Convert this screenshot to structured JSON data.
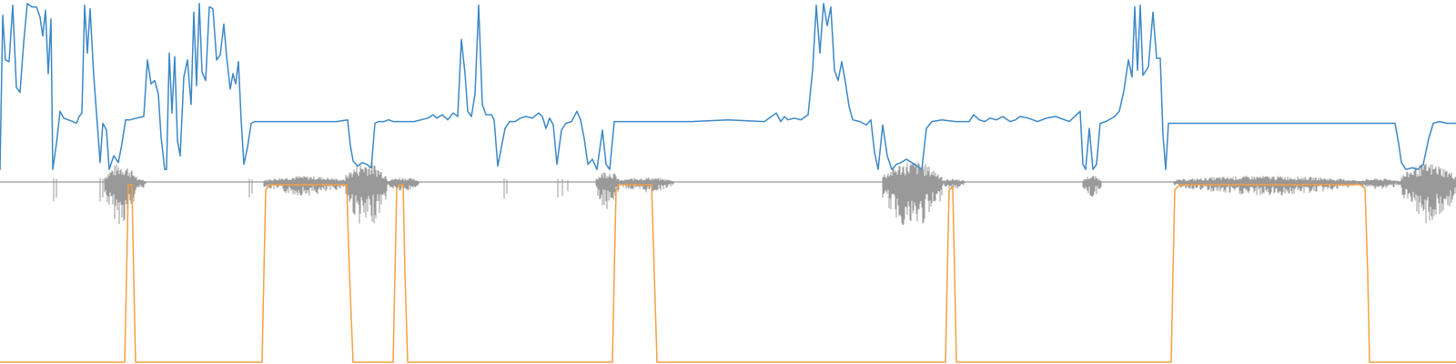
{
  "colors": {
    "background": "#ffffff",
    "waveform": "#999999",
    "pitch": "#3c88c6",
    "voicing": "#f4a043"
  },
  "chart_data": {
    "type": "line",
    "title": "",
    "xlabel": "",
    "ylabel": "",
    "xlim": [
      0,
      1600
    ],
    "grid": false,
    "legend": "none",
    "series": [
      {
        "color": "#3c88c6",
        "ylim": [
          0,
          1
        ],
        "points": [
          [
            0,
            0.02
          ],
          [
            3,
            0.92
          ],
          [
            6,
            0.66
          ],
          [
            10,
            0.65
          ],
          [
            14,
            0.98
          ],
          [
            18,
            0.5
          ],
          [
            22,
            0.47
          ],
          [
            26,
            0.76
          ],
          [
            30,
            0.99
          ],
          [
            35,
            0.97
          ],
          [
            40,
            0.97
          ],
          [
            44,
            0.91
          ],
          [
            47,
            0.8
          ],
          [
            50,
            0.95
          ],
          [
            53,
            0.58
          ],
          [
            56,
            0.9
          ],
          [
            58,
            0.02
          ],
          [
            62,
            0.17
          ],
          [
            66,
            0.36
          ],
          [
            70,
            0.32
          ],
          [
            75,
            0.31
          ],
          [
            80,
            0.3
          ],
          [
            84,
            0.29
          ],
          [
            87,
            0.33
          ],
          [
            90,
            0.35
          ],
          [
            93,
            0.98
          ],
          [
            96,
            0.7
          ],
          [
            99,
            0.96
          ],
          [
            103,
            0.57
          ],
          [
            107,
            0.28
          ],
          [
            110,
            0.06
          ],
          [
            113,
            0.29
          ],
          [
            117,
            0.25
          ],
          [
            120,
            0.02
          ],
          [
            125,
            0.1
          ],
          [
            130,
            0.06
          ],
          [
            134,
            0.17
          ],
          [
            138,
            0.31
          ],
          [
            143,
            0.31
          ],
          [
            150,
            0.32
          ],
          [
            158,
            0.33
          ],
          [
            162,
            0.66
          ],
          [
            166,
            0.52
          ],
          [
            170,
            0.54
          ],
          [
            174,
            0.46
          ],
          [
            177,
            0.21
          ],
          [
            181,
            0.02
          ],
          [
            183,
            0.02
          ],
          [
            186,
            0.7
          ],
          [
            189,
            0.35
          ],
          [
            192,
            0.68
          ],
          [
            195,
            0.19
          ],
          [
            198,
            0.1
          ],
          [
            202,
            0.56
          ],
          [
            206,
            0.66
          ],
          [
            210,
            0.4
          ],
          [
            213,
            0.94
          ],
          [
            216,
            0.51
          ],
          [
            219,
            0.99
          ],
          [
            222,
            0.59
          ],
          [
            226,
            0.54
          ],
          [
            230,
            0.97
          ],
          [
            234,
            0.96
          ],
          [
            238,
            0.66
          ],
          [
            242,
            0.69
          ],
          [
            246,
            0.87
          ],
          [
            249,
            0.68
          ],
          [
            253,
            0.49
          ],
          [
            256,
            0.58
          ],
          [
            259,
            0.52
          ],
          [
            262,
            0.65
          ],
          [
            265,
            0.31
          ],
          [
            268,
            0.05
          ],
          [
            272,
            0.15
          ],
          [
            276,
            0.29
          ],
          [
            280,
            0.3
          ],
          [
            300,
            0.3
          ],
          [
            340,
            0.3
          ],
          [
            370,
            0.3
          ],
          [
            382,
            0.31
          ],
          [
            385,
            0.16
          ],
          [
            388,
            0.07
          ],
          [
            393,
            0.04
          ],
          [
            398,
            0.06
          ],
          [
            403,
            0.05
          ],
          [
            408,
            0.03
          ],
          [
            412,
            0.29
          ],
          [
            416,
            0.3
          ],
          [
            422,
            0.3
          ],
          [
            427,
            0.31
          ],
          [
            432,
            0.3
          ],
          [
            440,
            0.3
          ],
          [
            455,
            0.3
          ],
          [
            470,
            0.32
          ],
          [
            476,
            0.34
          ],
          [
            480,
            0.32
          ],
          [
            486,
            0.34
          ],
          [
            492,
            0.31
          ],
          [
            498,
            0.35
          ],
          [
            503,
            0.33
          ],
          [
            507,
            0.78
          ],
          [
            511,
            0.58
          ],
          [
            514,
            0.36
          ],
          [
            518,
            0.33
          ],
          [
            522,
            0.46
          ],
          [
            526,
            0.98
          ],
          [
            530,
            0.4
          ],
          [
            534,
            0.34
          ],
          [
            540,
            0.34
          ],
          [
            543,
            0.31
          ],
          [
            547,
            0.04
          ],
          [
            551,
            0.15
          ],
          [
            555,
            0.26
          ],
          [
            560,
            0.3
          ],
          [
            566,
            0.3
          ],
          [
            572,
            0.32
          ],
          [
            578,
            0.33
          ],
          [
            585,
            0.32
          ],
          [
            592,
            0.35
          ],
          [
            596,
            0.33
          ],
          [
            600,
            0.26
          ],
          [
            604,
            0.32
          ],
          [
            608,
            0.28
          ],
          [
            612,
            0.05
          ],
          [
            617,
            0.25
          ],
          [
            622,
            0.29
          ],
          [
            628,
            0.3
          ],
          [
            634,
            0.36
          ],
          [
            638,
            0.31
          ],
          [
            642,
            0.2
          ],
          [
            646,
            0.05
          ],
          [
            651,
            0.08
          ],
          [
            656,
            0.02
          ],
          [
            662,
            0.25
          ],
          [
            666,
            0.05
          ],
          [
            670,
            0.02
          ],
          [
            675,
            0.3
          ],
          [
            700,
            0.3
          ],
          [
            760,
            0.3
          ],
          [
            800,
            0.31
          ],
          [
            840,
            0.3
          ],
          [
            853,
            0.35
          ],
          [
            858,
            0.3
          ],
          [
            862,
            0.33
          ],
          [
            866,
            0.31
          ],
          [
            873,
            0.32
          ],
          [
            880,
            0.31
          ],
          [
            888,
            0.34
          ],
          [
            893,
            0.6
          ],
          [
            897,
            0.98
          ],
          [
            901,
            0.7
          ],
          [
            905,
            0.99
          ],
          [
            909,
            0.86
          ],
          [
            913,
            0.97
          ],
          [
            917,
            0.6
          ],
          [
            921,
            0.54
          ],
          [
            925,
            0.65
          ],
          [
            929,
            0.53
          ],
          [
            933,
            0.39
          ],
          [
            937,
            0.31
          ],
          [
            945,
            0.3
          ],
          [
            952,
            0.28
          ],
          [
            957,
            0.31
          ],
          [
            961,
            0.12
          ],
          [
            965,
            0.02
          ],
          [
            970,
            0.28
          ],
          [
            975,
            0.1
          ],
          [
            980,
            0.02
          ],
          [
            985,
            0.05
          ],
          [
            990,
            0.06
          ],
          [
            996,
            0.08
          ],
          [
            1002,
            0.06
          ],
          [
            1008,
            0.04
          ],
          [
            1013,
            0.02
          ],
          [
            1018,
            0.26
          ],
          [
            1024,
            0.3
          ],
          [
            1035,
            0.31
          ],
          [
            1050,
            0.3
          ],
          [
            1065,
            0.3
          ],
          [
            1070,
            0.34
          ],
          [
            1076,
            0.31
          ],
          [
            1082,
            0.3
          ],
          [
            1088,
            0.32
          ],
          [
            1095,
            0.31
          ],
          [
            1102,
            0.33
          ],
          [
            1110,
            0.3
          ],
          [
            1116,
            0.31
          ],
          [
            1121,
            0.33
          ],
          [
            1130,
            0.32
          ],
          [
            1140,
            0.3
          ],
          [
            1150,
            0.32
          ],
          [
            1160,
            0.33
          ],
          [
            1175,
            0.3
          ],
          [
            1183,
            0.34
          ],
          [
            1187,
            0.36
          ],
          [
            1190,
            0.05
          ],
          [
            1193,
            0.02
          ],
          [
            1197,
            0.26
          ],
          [
            1201,
            0.02
          ],
          [
            1205,
            0.05
          ],
          [
            1209,
            0.29
          ],
          [
            1215,
            0.3
          ],
          [
            1225,
            0.33
          ],
          [
            1230,
            0.36
          ],
          [
            1235,
            0.48
          ],
          [
            1240,
            0.66
          ],
          [
            1244,
            0.56
          ],
          [
            1247,
            0.97
          ],
          [
            1250,
            0.6
          ],
          [
            1253,
            0.98
          ],
          [
            1256,
            0.57
          ],
          [
            1262,
            0.62
          ],
          [
            1267,
            0.94
          ],
          [
            1271,
            0.67
          ],
          [
            1275,
            0.67
          ],
          [
            1278,
            0.22
          ],
          [
            1281,
            0.02
          ],
          [
            1284,
            0.29
          ],
          [
            1290,
            0.29
          ],
          [
            1320,
            0.29
          ],
          [
            1400,
            0.29
          ],
          [
            1480,
            0.29
          ],
          [
            1533,
            0.29
          ],
          [
            1537,
            0.17
          ],
          [
            1540,
            0.06
          ],
          [
            1545,
            0.02
          ],
          [
            1552,
            0.03
          ],
          [
            1558,
            0.02
          ],
          [
            1564,
            0.05
          ],
          [
            1570,
            0.2
          ],
          [
            1575,
            0.29
          ],
          [
            1582,
            0.3
          ],
          [
            1590,
            0.29
          ],
          [
            1600,
            0.29
          ]
        ]
      },
      {
        "color": "#f4a043",
        "ylim": [
          0,
          1
        ],
        "points": [
          [
            0,
            0
          ],
          [
            137,
            0
          ],
          [
            139,
            0.47
          ],
          [
            141,
            1
          ],
          [
            145,
            1
          ],
          [
            147,
            0.47
          ],
          [
            149,
            0
          ],
          [
            288,
            0
          ],
          [
            290,
            0.5
          ],
          [
            292,
            0.97
          ],
          [
            296,
            1
          ],
          [
            381,
            1
          ],
          [
            384,
            0.5
          ],
          [
            388,
            0
          ],
          [
            432,
            0
          ],
          [
            434,
            0.5
          ],
          [
            436,
            0.98
          ],
          [
            439,
            1
          ],
          [
            443,
            1
          ],
          [
            445,
            0.5
          ],
          [
            448,
            0
          ],
          [
            673,
            0
          ],
          [
            675,
            0.5
          ],
          [
            677,
            0.97
          ],
          [
            680,
            1
          ],
          [
            716,
            1
          ],
          [
            719,
            0.5
          ],
          [
            722,
            0
          ],
          [
            1039,
            0
          ],
          [
            1041,
            0.5
          ],
          [
            1043,
            0.97
          ],
          [
            1047,
            0.99
          ],
          [
            1049,
            0.5
          ],
          [
            1051,
            0
          ],
          [
            1287,
            0
          ],
          [
            1289,
            0.5
          ],
          [
            1291,
            0.97
          ],
          [
            1296,
            1
          ],
          [
            1495,
            1
          ],
          [
            1500,
            0.98
          ],
          [
            1503,
            0.5
          ],
          [
            1505,
            0
          ],
          [
            1600,
            0
          ]
        ]
      },
      {
        "color": "#999999",
        "ylim": [
          -1,
          1
        ],
        "bursts": [
          {
            "x0": 115,
            "x1": 150,
            "amp": 0.55
          },
          {
            "x0": 150,
            "x1": 160,
            "amp": 0.1
          },
          {
            "x0": 290,
            "x1": 380,
            "amp": 0.18
          },
          {
            "x0": 380,
            "x1": 425,
            "amp": 0.6
          },
          {
            "x0": 425,
            "x1": 460,
            "amp": 0.14
          },
          {
            "x0": 655,
            "x1": 680,
            "amp": 0.35
          },
          {
            "x0": 680,
            "x1": 740,
            "amp": 0.14
          },
          {
            "x0": 970,
            "x1": 1035,
            "amp": 0.62
          },
          {
            "x0": 1035,
            "x1": 1060,
            "amp": 0.1
          },
          {
            "x0": 1190,
            "x1": 1210,
            "amp": 0.2
          },
          {
            "x0": 1290,
            "x1": 1490,
            "amp": 0.18
          },
          {
            "x0": 1490,
            "x1": 1540,
            "amp": 0.1
          },
          {
            "x0": 1540,
            "x1": 1600,
            "amp": 0.55
          }
        ],
        "spikes": [
          [
            59,
            0.25
          ],
          [
            62,
            0.2
          ],
          [
            110,
            0.25
          ],
          [
            113,
            0.2
          ],
          [
            274,
            0.2
          ],
          [
            277,
            0.15
          ],
          [
            554,
            0.22
          ],
          [
            557,
            0.15
          ],
          [
            613,
            0.2
          ],
          [
            618,
            0.18
          ],
          [
            624,
            0.12
          ],
          [
            662,
            0.3
          ],
          [
            666,
            0.25
          ]
        ]
      }
    ]
  }
}
